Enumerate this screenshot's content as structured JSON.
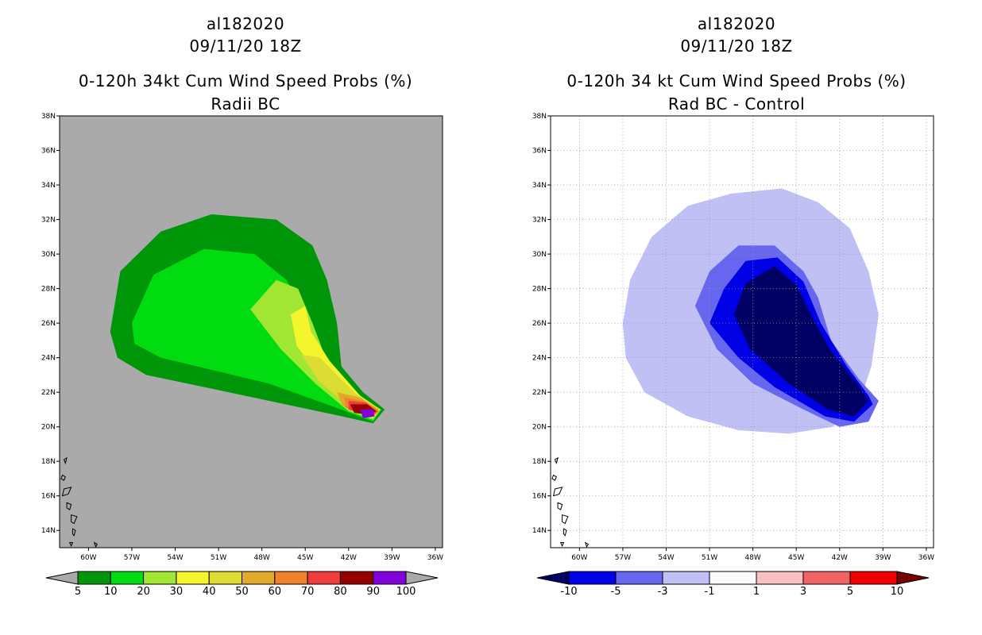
{
  "chart_data": [
    {
      "type": "heatmap",
      "title": [
        "al182020",
        "09/11/20 18Z",
        "0-120h 34kt Cum Wind Speed Probs (%)",
        "Radii BC"
      ],
      "background_color": "#aaaaaa",
      "grid": false,
      "x_ticks": [
        "60W",
        "57W",
        "54W",
        "51W",
        "48W",
        "45W",
        "42W",
        "39W",
        "36W"
      ],
      "y_ticks": [
        "14N",
        "16N",
        "18N",
        "20N",
        "22N",
        "24N",
        "26N",
        "28N",
        "30N",
        "32N",
        "34N",
        "36N",
        "38N"
      ],
      "xlim": [
        -62.0,
        -35.5
      ],
      "ylim": [
        13.0,
        38.0
      ],
      "colorbar": {
        "labels": [
          "5",
          "10",
          "20",
          "30",
          "40",
          "50",
          "60",
          "70",
          "80",
          "90",
          "100"
        ],
        "colors": [
          "#00960a",
          "#00dc10",
          "#a0e632",
          "#f5f52d",
          "#dcdc32",
          "#e1aa2d",
          "#f0822d",
          "#f03c3c",
          "#960000",
          "#8200dc"
        ],
        "under_color": "#aaaaaa",
        "over_color": "#aaaaaa"
      },
      "levels": [
        {
          "value": 5,
          "color": "#00960a",
          "polygon": [
            [
              -58.5,
              25.5
            ],
            [
              -57.8,
              29.0
            ],
            [
              -55.0,
              31.3
            ],
            [
              -51.5,
              32.3
            ],
            [
              -47.0,
              32.0
            ],
            [
              -44.5,
              30.5
            ],
            [
              -43.5,
              28.5
            ],
            [
              -42.8,
              26.0
            ],
            [
              -42.5,
              23.5
            ],
            [
              -41.0,
              22.0
            ],
            [
              -39.5,
              21.0
            ],
            [
              -40.3,
              20.2
            ],
            [
              -43.0,
              20.7
            ],
            [
              -47.5,
              21.5
            ],
            [
              -52.0,
              22.3
            ],
            [
              -56.0,
              23.0
            ],
            [
              -58.0,
              24.0
            ]
          ]
        },
        {
          "value": 10,
          "color": "#00dc10",
          "polygon": [
            [
              -57.0,
              26.0
            ],
            [
              -55.5,
              28.8
            ],
            [
              -52.0,
              30.3
            ],
            [
              -48.5,
              30.0
            ],
            [
              -46.3,
              28.5
            ],
            [
              -45.0,
              26.5
            ],
            [
              -44.5,
              24.0
            ],
            [
              -42.0,
              22.0
            ],
            [
              -39.7,
              21.0
            ],
            [
              -40.3,
              20.3
            ],
            [
              -43.5,
              21.3
            ],
            [
              -47.5,
              22.5
            ],
            [
              -51.5,
              23.3
            ],
            [
              -55.0,
              24.0
            ],
            [
              -56.8,
              24.8
            ]
          ]
        },
        {
          "value": 20,
          "color": "#a0e632",
          "polygon": [
            [
              -48.8,
              26.8
            ],
            [
              -47.0,
              28.5
            ],
            [
              -45.5,
              28.0
            ],
            [
              -44.5,
              26.0
            ],
            [
              -43.5,
              23.8
            ],
            [
              -41.3,
              21.8
            ],
            [
              -39.8,
              21.0
            ],
            [
              -40.3,
              20.4
            ],
            [
              -42.0,
              20.9
            ],
            [
              -44.3,
              22.5
            ],
            [
              -46.7,
              24.5
            ]
          ]
        },
        {
          "value": 30,
          "color": "#f5f52d",
          "polygon": [
            [
              -46.0,
              26.5
            ],
            [
              -45.0,
              27.0
            ],
            [
              -44.6,
              25.5
            ],
            [
              -43.3,
              23.8
            ],
            [
              -41.2,
              21.8
            ],
            [
              -39.8,
              21.0
            ],
            [
              -40.3,
              20.5
            ],
            [
              -42.0,
              21.1
            ],
            [
              -43.6,
              22.5
            ],
            [
              -45.6,
              24.7
            ]
          ]
        },
        {
          "value": 40,
          "color": "#dcdc32",
          "polygon": [
            [
              -45.3,
              24.2
            ],
            [
              -44.0,
              24.0
            ],
            [
              -41.5,
              21.9
            ],
            [
              -39.9,
              21.0
            ],
            [
              -40.3,
              20.6
            ],
            [
              -42.0,
              21.2
            ],
            [
              -44.0,
              22.6
            ]
          ]
        },
        {
          "value": 50,
          "color": "#e1aa2d",
          "polygon": [
            [
              -42.8,
              22.0
            ],
            [
              -41.2,
              21.7
            ],
            [
              -39.9,
              21.0
            ],
            [
              -40.3,
              20.6
            ],
            [
              -42.4,
              21.2
            ]
          ]
        },
        {
          "value": 60,
          "color": "#f0822d",
          "polygon": [
            [
              -42.3,
              21.7
            ],
            [
              -41.0,
              21.5
            ],
            [
              -39.9,
              20.9
            ],
            [
              -40.3,
              20.6
            ],
            [
              -42.2,
              21.1
            ]
          ]
        },
        {
          "value": 70,
          "color": "#f03c3c",
          "polygon": [
            [
              -42.0,
              21.5
            ],
            [
              -40.8,
              21.4
            ],
            [
              -40.0,
              20.9
            ],
            [
              -40.4,
              20.6
            ],
            [
              -42.0,
              21.0
            ]
          ]
        },
        {
          "value": 80,
          "color": "#960000",
          "polygon": [
            [
              -41.9,
              21.3
            ],
            [
              -40.7,
              21.3
            ],
            [
              -40.1,
              20.9
            ],
            [
              -40.5,
              20.7
            ],
            [
              -41.6,
              20.8
            ]
          ]
        },
        {
          "value": 90,
          "color": "#8200dc",
          "polygon": [
            [
              -41.2,
              21.0
            ],
            [
              -40.3,
              21.0
            ],
            [
              -40.2,
              20.6
            ],
            [
              -41.0,
              20.5
            ]
          ]
        }
      ]
    },
    {
      "type": "heatmap",
      "title": [
        "al182020",
        "09/11/20 18Z",
        "0-120h 34 kt Cum Wind Speed Probs (%)",
        "Rad BC - Control"
      ],
      "background_color": "#ffffff",
      "grid": true,
      "x_ticks": [
        "60W",
        "57W",
        "54W",
        "51W",
        "48W",
        "45W",
        "42W",
        "39W",
        "36W"
      ],
      "y_ticks": [
        "14N",
        "16N",
        "18N",
        "20N",
        "22N",
        "24N",
        "26N",
        "28N",
        "30N",
        "32N",
        "34N",
        "36N",
        "38N"
      ],
      "xlim": [
        -62.0,
        -35.5
      ],
      "ylim": [
        13.0,
        38.0
      ],
      "colorbar": {
        "labels": [
          "-10",
          "-5",
          "-3",
          "-1",
          "1",
          "3",
          "5",
          "10"
        ],
        "colors": [
          "#0000e6",
          "#6666ee",
          "#c0c0f5",
          "#ffffff",
          "#f8c0c0",
          "#f06464",
          "#f00000"
        ],
        "under_color": "#000064",
        "over_color": "#780000"
      },
      "levels": [
        {
          "value": -1,
          "color": "#c0c0f5",
          "polygon": [
            [
              -57.0,
              26.0
            ],
            [
              -56.5,
              28.5
            ],
            [
              -55.0,
              31.0
            ],
            [
              -52.5,
              32.8
            ],
            [
              -49.5,
              33.5
            ],
            [
              -46.0,
              33.8
            ],
            [
              -43.5,
              33.0
            ],
            [
              -41.3,
              31.5
            ],
            [
              -40.0,
              29.0
            ],
            [
              -39.3,
              26.5
            ],
            [
              -39.8,
              23.5
            ],
            [
              -40.8,
              21.0
            ],
            [
              -42.5,
              20.0
            ],
            [
              -45.5,
              19.6
            ],
            [
              -49.0,
              19.8
            ],
            [
              -52.5,
              20.6
            ],
            [
              -55.5,
              22.0
            ],
            [
              -56.8,
              24.0
            ]
          ]
        },
        {
          "value": -3,
          "color": "#6666ee",
          "polygon": [
            [
              -52.0,
              27.0
            ],
            [
              -51.0,
              29.0
            ],
            [
              -49.0,
              30.5
            ],
            [
              -46.5,
              30.5
            ],
            [
              -44.5,
              29.0
            ],
            [
              -43.5,
              27.5
            ],
            [
              -42.6,
              25.0
            ],
            [
              -40.7,
              22.8
            ],
            [
              -39.3,
              21.5
            ],
            [
              -40.0,
              20.3
            ],
            [
              -42.0,
              20.0
            ],
            [
              -44.5,
              21.0
            ],
            [
              -48.0,
              22.5
            ],
            [
              -50.5,
              24.5
            ]
          ]
        },
        {
          "value": -5,
          "color": "#0000e6",
          "polygon": [
            [
              -51.0,
              26.0
            ],
            [
              -50.0,
              28.0
            ],
            [
              -48.5,
              29.6
            ],
            [
              -46.3,
              29.8
            ],
            [
              -44.5,
              28.4
            ],
            [
              -43.3,
              26.0
            ],
            [
              -41.5,
              23.5
            ],
            [
              -40.0,
              21.8
            ],
            [
              -39.7,
              21.3
            ],
            [
              -41.0,
              20.3
            ],
            [
              -43.0,
              20.6
            ],
            [
              -46.5,
              22.3
            ],
            [
              -49.0,
              24.0
            ]
          ]
        },
        {
          "value": -10,
          "color": "#000064",
          "polygon": [
            [
              -49.3,
              26.5
            ],
            [
              -48.5,
              28.3
            ],
            [
              -46.5,
              29.3
            ],
            [
              -45.0,
              28.2
            ],
            [
              -44.0,
              26.5
            ],
            [
              -42.7,
              24.5
            ],
            [
              -40.8,
              22.5
            ],
            [
              -40.0,
              21.5
            ],
            [
              -41.0,
              20.6
            ],
            [
              -42.8,
              21.0
            ],
            [
              -45.5,
              22.5
            ],
            [
              -48.2,
              24.5
            ]
          ]
        }
      ]
    }
  ]
}
